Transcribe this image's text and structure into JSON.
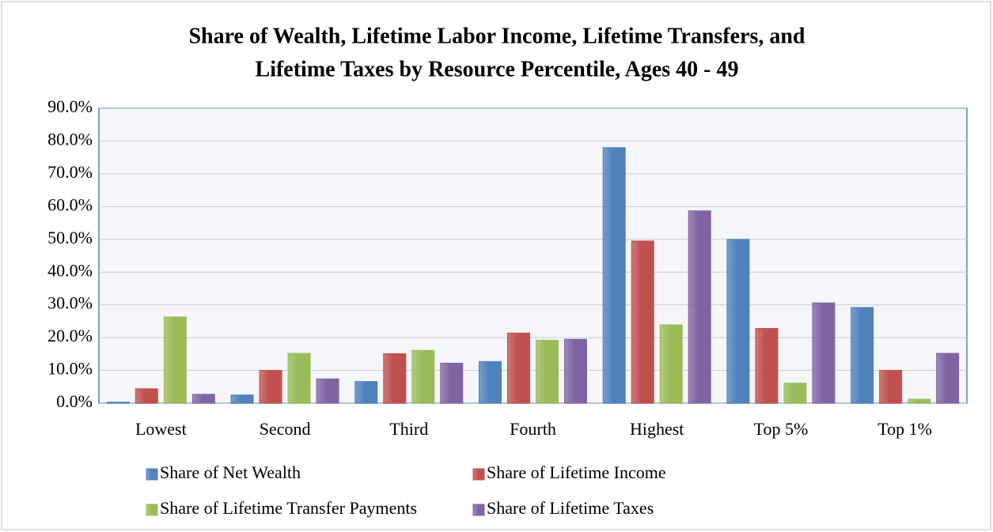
{
  "chart_data": {
    "type": "bar",
    "title": [
      "Share of Wealth, Lifetime Labor Income, Lifetime Transfers, and",
      "Lifetime Taxes by Resource Percentile, Ages 40 - 49"
    ],
    "categories": [
      "Lowest",
      "Second",
      "Third",
      "Fourth",
      "Highest",
      "Top 5%",
      "Top 1%"
    ],
    "series": [
      {
        "name": "Share of Net Wealth",
        "color": "#4f81bd",
        "values": [
          0.3,
          2.5,
          6.6,
          12.7,
          78.0,
          50.0,
          29.2
        ]
      },
      {
        "name": "Share of Lifetime Income",
        "color": "#c0504d",
        "values": [
          4.4,
          10.0,
          15.1,
          21.4,
          49.5,
          22.8,
          10.0
        ]
      },
      {
        "name": "Share of Lifetime Transfer Payments",
        "color": "#9bbb59",
        "values": [
          26.3,
          15.2,
          16.1,
          19.2,
          23.9,
          6.1,
          1.2
        ]
      },
      {
        "name": "Share of Lifetime Taxes",
        "color": "#8064a2",
        "values": [
          2.7,
          7.4,
          12.2,
          19.5,
          58.7,
          30.6,
          15.2
        ]
      }
    ],
    "ylim": [
      0,
      90
    ],
    "yticks": [
      {
        "value": 0,
        "label": "0.0%"
      },
      {
        "value": 10,
        "label": "10.0%"
      },
      {
        "value": 20,
        "label": "20.0%"
      },
      {
        "value": 30,
        "label": "30.0%"
      },
      {
        "value": 40,
        "label": "40.0%"
      },
      {
        "value": 50,
        "label": "50.0%"
      },
      {
        "value": 60,
        "label": "60.0%"
      },
      {
        "value": 70,
        "label": "70.0%"
      },
      {
        "value": 80,
        "label": "80.0%"
      },
      {
        "value": 90,
        "label": "90.0%"
      }
    ],
    "grid": true,
    "legend": "bottom"
  }
}
